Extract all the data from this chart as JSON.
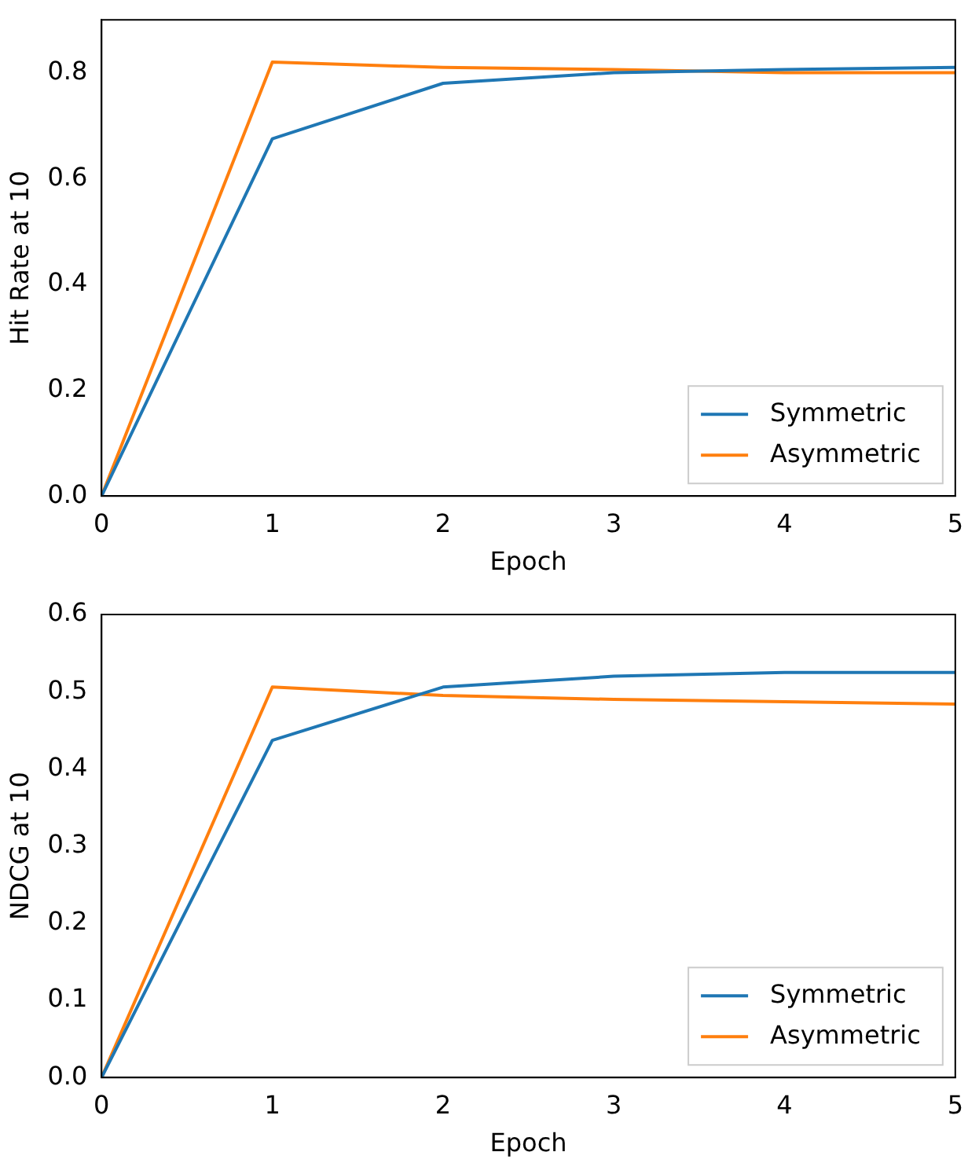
{
  "chart_data": [
    {
      "type": "line",
      "xlabel": "Epoch",
      "ylabel": "Hit Rate at 10",
      "x": [
        0,
        1,
        2,
        3,
        4,
        5
      ],
      "series": [
        {
          "name": "Symmetric",
          "color": "#1f77b4",
          "values": [
            0,
            0.675,
            0.78,
            0.8,
            0.806,
            0.81
          ]
        },
        {
          "name": "Asymmetric",
          "color": "#ff7f0e",
          "values": [
            0,
            0.82,
            0.81,
            0.806,
            0.8,
            0.8
          ]
        }
      ],
      "xlim": [
        0,
        5
      ],
      "xticks": [
        0,
        1,
        2,
        3,
        4,
        5
      ],
      "ylim": [
        0,
        0.9
      ],
      "yticks": [
        {
          "value": 0,
          "label": "0.0"
        },
        {
          "value": 0.2,
          "label": "0.2"
        },
        {
          "value": 0.4,
          "label": "0.4"
        },
        {
          "value": 0.6,
          "label": "0.6"
        },
        {
          "value": 0.8,
          "label": "0.8"
        }
      ],
      "grid": false,
      "legend": "bottom right",
      "marker": "none",
      "line_style": "solid"
    },
    {
      "type": "line",
      "xlabel": "Epoch",
      "ylabel": "NDCG at 10",
      "x": [
        0,
        1,
        2,
        3,
        4,
        5
      ],
      "series": [
        {
          "name": "Symmetric",
          "color": "#1f77b4",
          "values": [
            0,
            0.437,
            0.506,
            0.52,
            0.525,
            0.525
          ]
        },
        {
          "name": "Asymmetric",
          "color": "#ff7f0e",
          "values": [
            0,
            0.506,
            0.495,
            0.49,
            0.487,
            0.484
          ]
        }
      ],
      "xlim": [
        0,
        5
      ],
      "xticks": [
        0,
        1,
        2,
        3,
        4,
        5
      ],
      "ylim": [
        0,
        0.6
      ],
      "yticks": [
        {
          "value": 0,
          "label": "0.0"
        },
        {
          "value": 0.1,
          "label": "0.1"
        },
        {
          "value": 0.2,
          "label": "0.2"
        },
        {
          "value": 0.3,
          "label": "0.3"
        },
        {
          "value": 0.4,
          "label": "0.4"
        },
        {
          "value": 0.5,
          "label": "0.5"
        },
        {
          "value": 0.6,
          "label": "0.6"
        }
      ],
      "grid": false,
      "legend": "bottom right",
      "marker": "none",
      "line_style": "solid"
    }
  ]
}
